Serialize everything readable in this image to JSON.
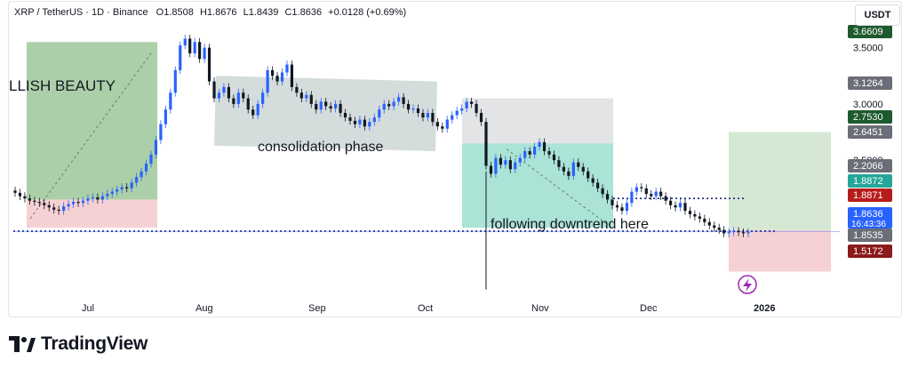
{
  "header": {
    "symbol": "XRP / TetherUS · 1D · Binance",
    "open_label": "O",
    "open": "1.8508",
    "high_label": "H",
    "high": "1.8676",
    "low_label": "L",
    "low": "1.8439",
    "close_label": "C",
    "close": "1.8636",
    "change": "+0.0128 (+0.69%)"
  },
  "currency": "USDT",
  "brand": {
    "name": "TradingView",
    "icon": "tradingview-logo-icon"
  },
  "colors": {
    "up": "#2962ff",
    "down": "#131722",
    "long_profit": "#8fbf8c",
    "long_loss": "#f4c6c8",
    "consolidation": "#b8c5c5",
    "target_zone": "#dcdde0",
    "teal_zone": "#8fd9c8",
    "price_tag": "#2962ff"
  },
  "annotations": [
    {
      "text": "LLISH BEAUTY"
    },
    {
      "text": "consolidation phase"
    },
    {
      "text": "following downtrend here"
    }
  ],
  "price_tags": [
    {
      "value": "3.6609",
      "color": "#1e5a2e"
    },
    {
      "value": "3.1264",
      "color": "#6b6e76"
    },
    {
      "value": "2.7530",
      "color": "#1e5a2e"
    },
    {
      "value": "2.6451",
      "color": "#6b6e76"
    },
    {
      "value": "2.2066",
      "color": "#6b6e76"
    },
    {
      "value": "1.8872",
      "color": "#26a69a"
    },
    {
      "value": "1.8871",
      "color": "#b71c1c"
    },
    {
      "value": "1.8636",
      "color": "#2962ff",
      "extra": "16:43:36"
    },
    {
      "value": "1.8535",
      "color": "#6b6e76"
    },
    {
      "value": "1.5172",
      "color": "#8b1a1a"
    }
  ],
  "lightning_icon": "lightning-icon",
  "chart_data": {
    "type": "candlestick",
    "title": "",
    "xlabel": "",
    "ylabel": "",
    "ylim": [
      1.3,
      3.75
    ],
    "y_ticks": [
      2.5,
      3.0,
      3.5
    ],
    "x_ticks": [
      "Jul",
      "Aug",
      "Sep",
      "Oct",
      "Nov",
      "Dec",
      "2026"
    ],
    "close_series": [
      2.21,
      2.18,
      2.16,
      2.14,
      2.13,
      2.12,
      2.1,
      2.08,
      2.06,
      2.05,
      2.09,
      2.11,
      2.13,
      2.12,
      2.14,
      2.16,
      2.17,
      2.15,
      2.18,
      2.2,
      2.22,
      2.24,
      2.26,
      2.25,
      2.3,
      2.35,
      2.4,
      2.47,
      2.55,
      2.68,
      2.82,
      2.95,
      3.1,
      3.3,
      3.52,
      3.58,
      3.45,
      3.55,
      3.4,
      3.5,
      3.2,
      3.05,
      3.1,
      3.15,
      3.05,
      3.0,
      3.1,
      3.05,
      2.95,
      2.9,
      3.0,
      3.1,
      3.3,
      3.25,
      3.2,
      3.28,
      3.35,
      3.15,
      3.1,
      3.05,
      3.08,
      3.0,
      2.95,
      3.02,
      2.98,
      2.96,
      3.0,
      2.92,
      2.88,
      2.85,
      2.82,
      2.86,
      2.8,
      2.84,
      2.88,
      2.95,
      3.0,
      2.98,
      3.02,
      3.06,
      3.0,
      2.95,
      2.96,
      2.92,
      2.88,
      2.92,
      2.84,
      2.8,
      2.78,
      2.86,
      2.9,
      2.94,
      2.96,
      3.02,
      3.0,
      2.92,
      2.84,
      2.45,
      2.38,
      2.52,
      2.46,
      2.5,
      2.42,
      2.48,
      2.52,
      2.58,
      2.55,
      2.62,
      2.66,
      2.58,
      2.55,
      2.5,
      2.44,
      2.4,
      2.36,
      2.48,
      2.44,
      2.4,
      2.34,
      2.3,
      2.25,
      2.2,
      2.15,
      2.1,
      2.08,
      2.05,
      2.12,
      2.22,
      2.26,
      2.25,
      2.2,
      2.18,
      2.22,
      2.18,
      2.14,
      2.1,
      2.08,
      2.12,
      2.05,
      2.02,
      2.0,
      1.98,
      1.95,
      1.92,
      1.9,
      1.88,
      1.85,
      1.86,
      1.87,
      1.86,
      1.85,
      1.86
    ],
    "levels": {
      "support_dotted": 1.87,
      "resistance_dotted": 2.16
    }
  }
}
